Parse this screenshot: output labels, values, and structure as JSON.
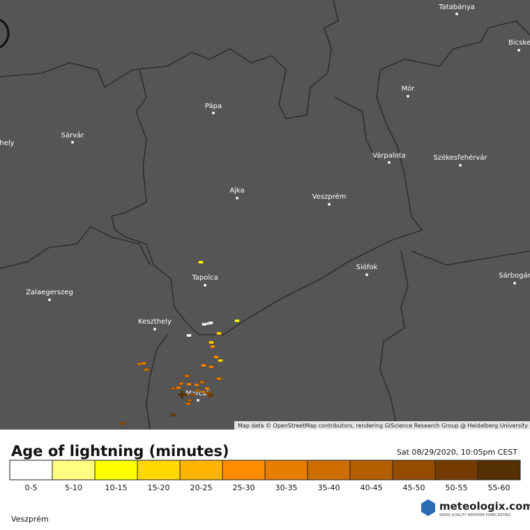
{
  "map": {
    "places": [
      "Tatabánya",
      "Bicske",
      "Mór",
      "Pápa",
      "hely",
      "Sárvár",
      "Várpalota",
      "Székesfehérvár",
      "Ajka",
      "Veszprém",
      "Siófok",
      "Tapolca",
      "Sárbogár",
      "Zalaegerszeg",
      "Keszthely",
      "Marcali"
    ],
    "attribution": "Map data © OpenStreetMap contributors, rendering GIScience Research Group @ Heidelberg University"
  },
  "legend": {
    "title": "Age of lightning (minutes)",
    "timestamp": "Sat 08/29/2020, 10:05pm CEST",
    "classes": [
      {
        "label": "0-5",
        "color": "#ffffff"
      },
      {
        "label": "5-10",
        "color": "#ffff80"
      },
      {
        "label": "10-15",
        "color": "#ffff00"
      },
      {
        "label": "15-20",
        "color": "#ffd800"
      },
      {
        "label": "20-25",
        "color": "#ffb400"
      },
      {
        "label": "25-30",
        "color": "#ff8c00"
      },
      {
        "label": "30-35",
        "color": "#e87e00"
      },
      {
        "label": "35-40",
        "color": "#cf6e00"
      },
      {
        "label": "40-45",
        "color": "#b35f00"
      },
      {
        "label": "45-50",
        "color": "#934c00"
      },
      {
        "label": "50-55",
        "color": "#733b00"
      },
      {
        "label": "55-60",
        "color": "#553000"
      }
    ]
  },
  "location": "Veszprém",
  "brand": {
    "name": "meteologix.com",
    "tagline": "SWISS QUALITY WEATHER FORECASTING"
  }
}
